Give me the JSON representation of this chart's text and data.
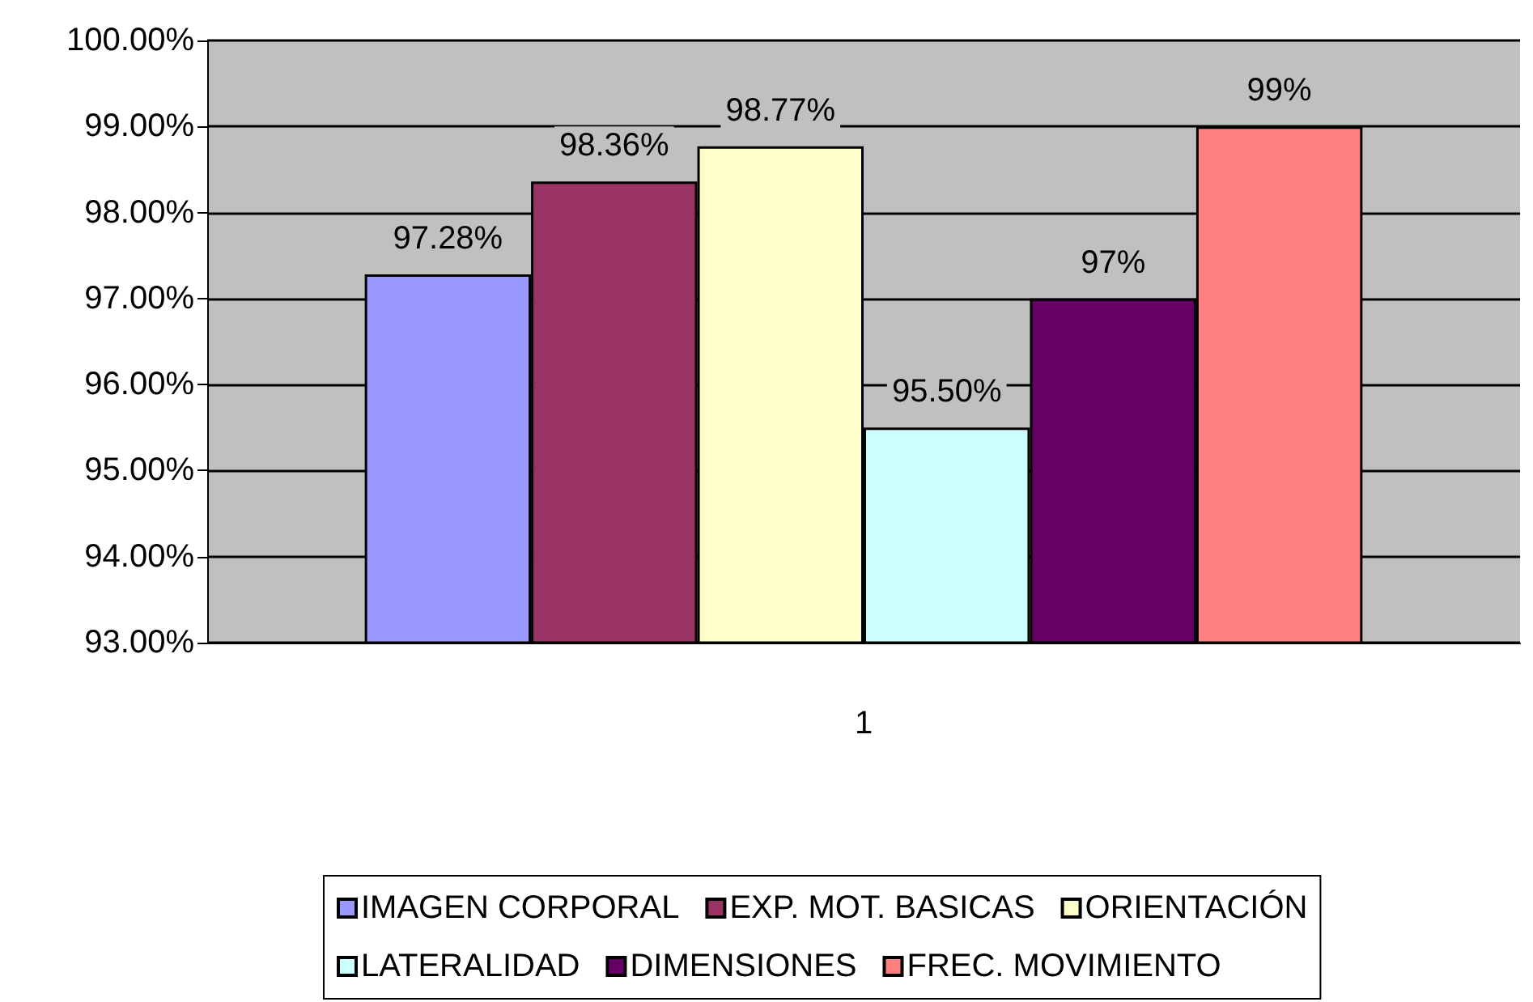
{
  "chart_data": {
    "type": "bar",
    "categories": [
      "1"
    ],
    "series": [
      {
        "name": "IMAGEN CORPORAL",
        "color": "#9999ff",
        "values": [
          97.28
        ],
        "value_labels": [
          "97.28%"
        ]
      },
      {
        "name": "EXP. MOT. BASICAS",
        "color": "#993366",
        "values": [
          98.36
        ],
        "value_labels": [
          "98.36%"
        ]
      },
      {
        "name": "ORIENTACIÓN",
        "color": "#ffffcc",
        "values": [
          98.77
        ],
        "value_labels": [
          "98.77%"
        ]
      },
      {
        "name": "LATERALIDAD",
        "color": "#ccffff",
        "values": [
          95.5
        ],
        "value_labels": [
          "95.50%"
        ]
      },
      {
        "name": "DIMENSIONES",
        "color": "#660066",
        "values": [
          97
        ],
        "value_labels": [
          "97%"
        ]
      },
      {
        "name": "FREC. MOVIMIENTO",
        "color": "#ff8080",
        "values": [
          99
        ],
        "value_labels": [
          "99%"
        ]
      }
    ],
    "ylim": [
      93,
      100
    ],
    "yticks": [
      {
        "value": 93,
        "label": "93.00%"
      },
      {
        "value": 94,
        "label": "94.00%"
      },
      {
        "value": 95,
        "label": "95.00%"
      },
      {
        "value": 96,
        "label": "96.00%"
      },
      {
        "value": 97,
        "label": "97.00%"
      },
      {
        "value": 98,
        "label": "98.00%"
      },
      {
        "value": 99,
        "label": "99.00%"
      },
      {
        "value": 100,
        "label": "100.00%"
      }
    ],
    "grid": "y",
    "legend": "bottom"
  }
}
